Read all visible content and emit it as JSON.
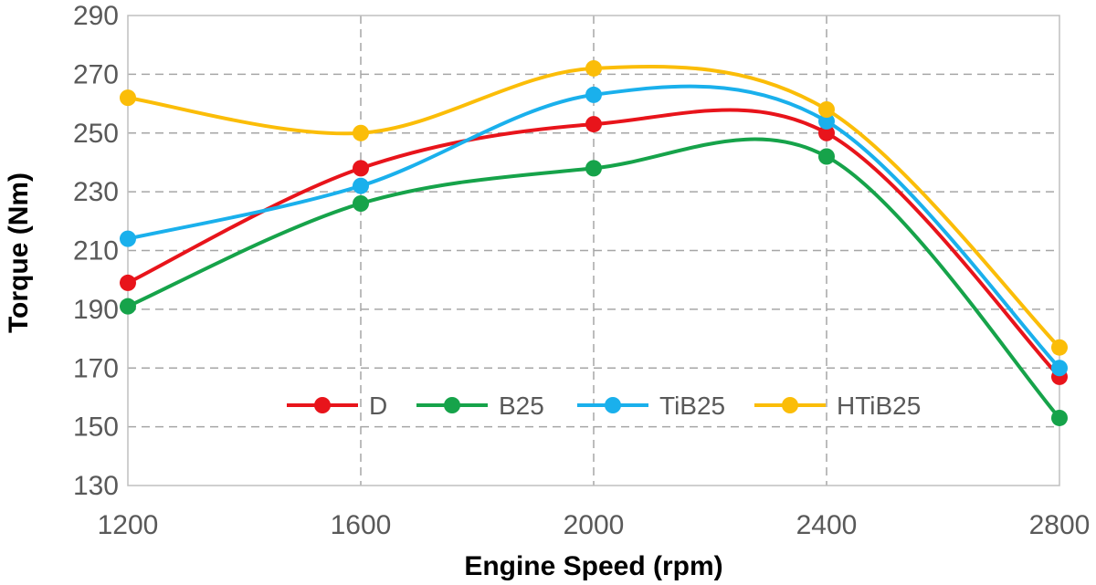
{
  "chart_data": {
    "type": "line",
    "smooth": true,
    "x": [
      1200,
      1600,
      2000,
      2400,
      2800
    ],
    "x_tick_labels": [
      "1200",
      "1600",
      "2000",
      "2400",
      "2800"
    ],
    "y_tick_labels": [
      "130",
      "150",
      "170",
      "190",
      "210",
      "230",
      "250",
      "270",
      "290"
    ],
    "y_ticks": [
      130,
      150,
      170,
      190,
      210,
      230,
      250,
      270,
      290
    ],
    "xlim": [
      1200,
      2800
    ],
    "ylim": [
      130,
      290
    ],
    "xlabel": "Engine Speed (rpm)",
    "ylabel": "Torque (Nm)",
    "grid": "dashed",
    "legend_position": "inside-bottom",
    "series": [
      {
        "name": "D",
        "color": "#e8141b",
        "values": [
          199,
          238,
          253,
          250,
          167
        ]
      },
      {
        "name": "B25",
        "color": "#16a34a",
        "values": [
          191,
          226,
          238,
          242,
          153
        ]
      },
      {
        "name": "TiB25",
        "color": "#1ab0ec",
        "values": [
          214,
          232,
          263,
          254,
          170
        ]
      },
      {
        "name": "HTiB25",
        "color": "#fbbd08",
        "values": [
          262,
          250,
          272,
          258,
          177
        ]
      }
    ]
  }
}
